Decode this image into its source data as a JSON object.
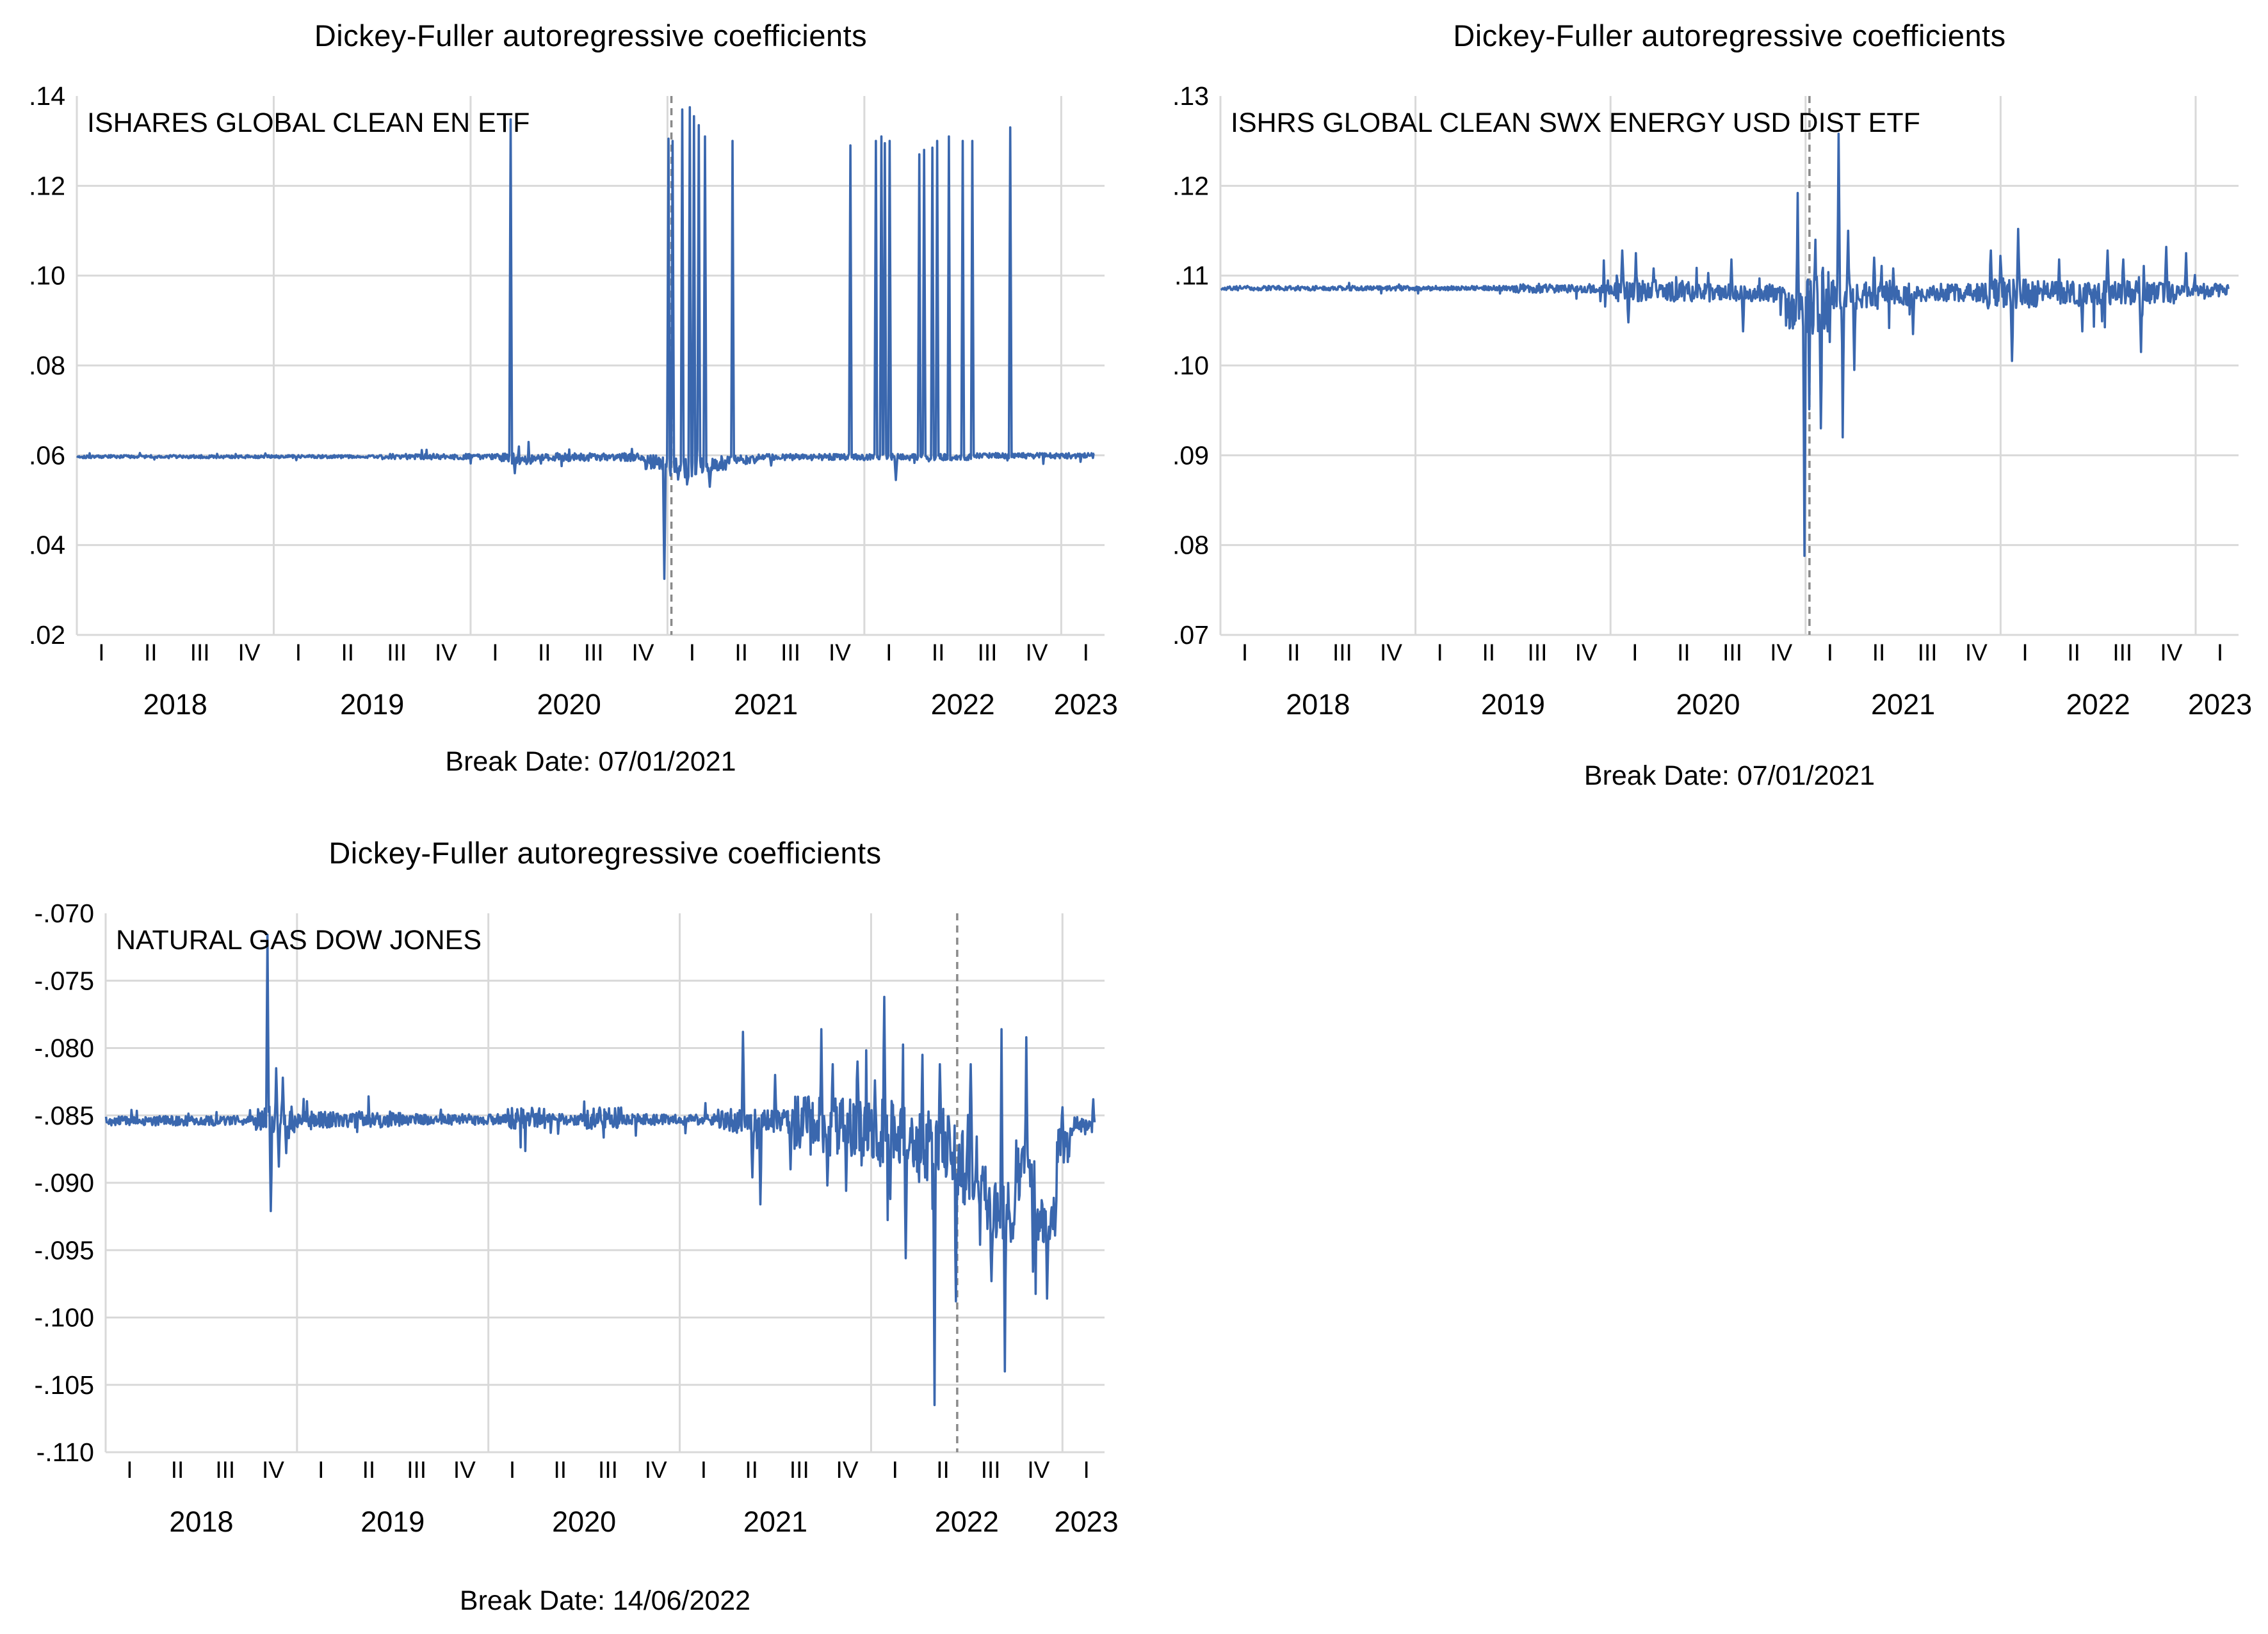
{
  "colors": {
    "series_line": "#3A67AE",
    "gridline": "#D9D9D9",
    "break_line": "#8a8a8a",
    "text": "#000000",
    "background": "#ffffff"
  },
  "charts": [
    {
      "title": "Dickey-Fuller autoregressive coefficients",
      "series_label": "ISHARES GLOBAL CLEAN EN ETF",
      "caption": "Break Date: 07/01/2021",
      "chart_data": {
        "type": "line",
        "x_range": [
          2018.0,
          2023.17
        ],
        "ylim": [
          0.02,
          0.14
        ],
        "y_ticks": [
          {
            "label": ".14",
            "value": 0.14
          },
          {
            "label": ".12",
            "value": 0.12
          },
          {
            "label": ".10",
            "value": 0.1
          },
          {
            "label": ".08",
            "value": 0.08
          },
          {
            "label": ".06",
            "value": 0.06
          },
          {
            "label": ".04",
            "value": 0.04
          },
          {
            "label": ".02",
            "value": 0.02
          }
        ],
        "x_quarter_labels": [
          "I",
          "II",
          "III",
          "IV",
          "I",
          "II",
          "III",
          "IV",
          "I",
          "II",
          "III",
          "IV",
          "I",
          "II",
          "III",
          "IV",
          "I",
          "II",
          "III",
          "IV",
          "I"
        ],
        "x_year_labels": [
          [
            "2018",
            2018.5
          ],
          [
            "2019",
            2019.5
          ],
          [
            "2020",
            2020.5
          ],
          [
            "2021",
            2021.5
          ],
          [
            "2022",
            2022.5
          ],
          [
            "2023",
            2023.125
          ]
        ],
        "year_gridlines": [
          2019,
          2020,
          2021,
          2022,
          2023
        ],
        "break_t": 2021.02,
        "break_date_label": "07/01/2021",
        "baseline": 0.0598,
        "segments": [
          [
            2018.0,
            2019.55,
            0.0597,
            0.00035
          ],
          [
            2019.55,
            2020.15,
            0.0597,
            0.0006
          ],
          [
            2020.15,
            2020.32,
            0.0592,
            0.0013
          ],
          [
            2020.32,
            2020.88,
            0.0596,
            0.0009
          ],
          [
            2020.88,
            2020.99,
            0.0585,
            0.0018
          ],
          [
            2020.99,
            2021.06,
            0.0568,
            0.0028
          ],
          [
            2021.06,
            2021.18,
            0.0572,
            0.0025
          ],
          [
            2021.18,
            2021.3,
            0.0582,
            0.0018
          ],
          [
            2021.3,
            2021.45,
            0.059,
            0.001
          ],
          [
            2021.45,
            2022.55,
            0.0596,
            0.0007
          ],
          [
            2022.55,
            2023.17,
            0.0599,
            0.0006
          ]
        ],
        "spikes": [
          [
            2020.205,
            0.1348
          ],
          [
            2020.225,
            0.056
          ],
          [
            2020.985,
            0.0325
          ],
          [
            2021.005,
            0.1305
          ],
          [
            2021.025,
            0.13
          ],
          [
            2021.075,
            0.137
          ],
          [
            2021.1,
            0.0535
          ],
          [
            2021.115,
            0.1375
          ],
          [
            2021.135,
            0.1355
          ],
          [
            2021.16,
            0.1335
          ],
          [
            2021.19,
            0.131
          ],
          [
            2021.215,
            0.053
          ],
          [
            2021.33,
            0.13
          ],
          [
            2021.93,
            0.129
          ],
          [
            2022.06,
            0.13
          ],
          [
            2022.085,
            0.131
          ],
          [
            2022.105,
            0.1295
          ],
          [
            2022.13,
            0.13
          ],
          [
            2022.16,
            0.0545
          ],
          [
            2022.28,
            0.127
          ],
          [
            2022.305,
            0.128
          ],
          [
            2022.345,
            0.1285
          ],
          [
            2022.37,
            0.13
          ],
          [
            2022.43,
            0.131
          ],
          [
            2022.5,
            0.13
          ],
          [
            2022.55,
            0.13
          ],
          [
            2022.74,
            0.133
          ]
        ]
      }
    },
    {
      "title": "Dickey-Fuller autoregressive coefficients",
      "series_label": "ISHRS GLOBAL CLEAN SWX ENERGY USD DIST ETF",
      "caption": "Break Date: 07/01/2021",
      "chart_data": {
        "type": "line",
        "x_range": [
          2018.0,
          2023.17
        ],
        "ylim": [
          0.07,
          0.13
        ],
        "y_ticks": [
          {
            "label": ".13",
            "value": 0.13
          },
          {
            "label": ".12",
            "value": 0.12
          },
          {
            "label": ".11",
            "value": 0.11
          },
          {
            "label": ".10",
            "value": 0.1
          },
          {
            "label": ".09",
            "value": 0.09
          },
          {
            "label": ".08",
            "value": 0.08
          },
          {
            "label": ".07",
            "value": 0.07
          }
        ],
        "x_quarter_labels": [
          "I",
          "II",
          "III",
          "IV",
          "I",
          "II",
          "III",
          "IV",
          "I",
          "II",
          "III",
          "IV",
          "I",
          "II",
          "III",
          "IV",
          "I",
          "II",
          "III",
          "IV",
          "I"
        ],
        "x_year_labels": [
          [
            "2018",
            2018.5
          ],
          [
            "2019",
            2019.5
          ],
          [
            "2020",
            2020.5
          ],
          [
            "2021",
            2021.5
          ],
          [
            "2022",
            2022.5
          ],
          [
            "2023",
            2023.125
          ]
        ],
        "year_gridlines": [
          2019,
          2020,
          2021,
          2022,
          2023
        ],
        "break_t": 2021.02,
        "break_date_label": "07/01/2021",
        "baseline": 0.1085,
        "segments": [
          [
            2018.0,
            2019.5,
            0.1086,
            0.00025
          ],
          [
            2019.5,
            2019.95,
            0.1086,
            0.0005
          ],
          [
            2019.95,
            2020.4,
            0.1083,
            0.0012
          ],
          [
            2020.4,
            2020.9,
            0.1081,
            0.001
          ],
          [
            2020.9,
            2021.0,
            0.1062,
            0.0022
          ],
          [
            2021.0,
            2021.13,
            0.1068,
            0.0042
          ],
          [
            2021.13,
            2021.55,
            0.1079,
            0.0016
          ],
          [
            2021.55,
            2021.9,
            0.1081,
            0.001
          ],
          [
            2021.9,
            2022.2,
            0.108,
            0.0017
          ],
          [
            2022.2,
            2022.9,
            0.1081,
            0.0013
          ],
          [
            2022.9,
            2023.17,
            0.1084,
            0.0007
          ]
        ],
        "spikes": [
          [
            2020.06,
            0.1128
          ],
          [
            2020.09,
            0.1048
          ],
          [
            2020.13,
            0.1125
          ],
          [
            2020.22,
            0.1108
          ],
          [
            2020.5,
            0.1103
          ],
          [
            2020.62,
            0.1118
          ],
          [
            2020.68,
            0.1038
          ],
          [
            2020.96,
            0.1192
          ],
          [
            2020.995,
            0.0788
          ],
          [
            2021.05,
            0.114
          ],
          [
            2021.08,
            0.093
          ],
          [
            2021.17,
            0.1258
          ],
          [
            2021.19,
            0.092
          ],
          [
            2021.22,
            0.115
          ],
          [
            2021.25,
            0.0995
          ],
          [
            2021.35,
            0.112
          ],
          [
            2021.45,
            0.1108
          ],
          [
            2021.55,
            0.1035
          ],
          [
            2021.95,
            0.1128
          ],
          [
            2022.0,
            0.1122
          ],
          [
            2022.06,
            0.1005
          ],
          [
            2022.09,
            0.1152
          ],
          [
            2022.3,
            0.1118
          ],
          [
            2022.42,
            0.1038
          ],
          [
            2022.55,
            0.1128
          ],
          [
            2022.63,
            0.1118
          ],
          [
            2022.72,
            0.1015
          ],
          [
            2022.85,
            0.1132
          ],
          [
            2022.95,
            0.1125
          ]
        ]
      }
    },
    {
      "title": "Dickey-Fuller autoregressive coefficients",
      "series_label": "NATURAL GAS DOW JONES",
      "caption": "Break Date: 14/06/2022",
      "chart_data": {
        "type": "line",
        "x_range": [
          2018.0,
          2023.17
        ],
        "ylim": [
          -0.11,
          -0.07
        ],
        "y_ticks": [
          {
            "label": "-.070",
            "value": -0.07
          },
          {
            "label": "-.075",
            "value": -0.075
          },
          {
            "label": "-.080",
            "value": -0.08
          },
          {
            "label": "-.085",
            "value": -0.085
          },
          {
            "label": "-.090",
            "value": -0.09
          },
          {
            "label": "-.095",
            "value": -0.095
          },
          {
            "label": "-.100",
            "value": -0.1
          },
          {
            "label": "-.105",
            "value": -0.105
          },
          {
            "label": "-.110",
            "value": -0.11
          }
        ],
        "x_quarter_labels": [
          "I",
          "II",
          "III",
          "IV",
          "I",
          "II",
          "III",
          "IV",
          "I",
          "II",
          "III",
          "IV",
          "I",
          "II",
          "III",
          "IV",
          "I",
          "II",
          "III",
          "IV",
          "I"
        ],
        "x_year_labels": [
          [
            "2018",
            2018.5
          ],
          [
            "2019",
            2019.5
          ],
          [
            "2020",
            2020.5
          ],
          [
            "2021",
            2021.5
          ],
          [
            "2022",
            2022.5
          ],
          [
            "2023",
            2023.125
          ]
        ],
        "year_gridlines": [
          2019,
          2020,
          2021,
          2022,
          2023
        ],
        "break_t": 2022.45,
        "break_date_label": "14/06/2022",
        "baseline": -0.0853,
        "segments": [
          [
            2018.0,
            2018.78,
            -0.0854,
            0.00035
          ],
          [
            2018.78,
            2018.83,
            -0.0853,
            0.0008
          ],
          [
            2018.83,
            2019.0,
            -0.0855,
            0.0012
          ],
          [
            2019.0,
            2019.55,
            -0.0853,
            0.0006
          ],
          [
            2019.55,
            2020.1,
            -0.0853,
            0.0004
          ],
          [
            2020.1,
            2020.3,
            -0.0852,
            0.0008
          ],
          [
            2020.3,
            2020.5,
            -0.0853,
            0.0004
          ],
          [
            2020.5,
            2020.7,
            -0.0852,
            0.0008
          ],
          [
            2020.7,
            2021.2,
            -0.0853,
            0.0004
          ],
          [
            2021.2,
            2021.6,
            -0.0854,
            0.0009
          ],
          [
            2021.6,
            2021.95,
            -0.0858,
            0.0022
          ],
          [
            2021.95,
            2022.2,
            -0.0863,
            0.0025
          ],
          [
            2022.2,
            2022.44,
            -0.0873,
            0.0028
          ],
          [
            2022.44,
            2022.6,
            -0.0888,
            0.0028
          ],
          [
            2022.6,
            2022.76,
            -0.0922,
            0.0022
          ],
          [
            2022.76,
            2022.86,
            -0.0893,
            0.002
          ],
          [
            2022.86,
            2022.97,
            -0.0928,
            0.0018
          ],
          [
            2022.97,
            2023.05,
            -0.0872,
            0.0014
          ],
          [
            2023.05,
            2023.17,
            -0.0857,
            0.0006
          ]
        ],
        "spikes": [
          [
            2018.845,
            -0.0716
          ],
          [
            2018.862,
            -0.0921
          ],
          [
            2018.89,
            -0.0815
          ],
          [
            2018.905,
            -0.0888
          ],
          [
            2018.925,
            -0.0822
          ],
          [
            2018.945,
            -0.0878
          ],
          [
            2021.33,
            -0.0788
          ],
          [
            2021.38,
            -0.0896
          ],
          [
            2021.42,
            -0.0916
          ],
          [
            2021.5,
            -0.082
          ],
          [
            2021.58,
            -0.089
          ],
          [
            2021.74,
            -0.0786
          ],
          [
            2021.77,
            -0.0902
          ],
          [
            2021.8,
            -0.0812
          ],
          [
            2021.87,
            -0.0906
          ],
          [
            2021.93,
            -0.081
          ],
          [
            2022.02,
            -0.0824
          ],
          [
            2022.07,
            -0.0762
          ],
          [
            2022.1,
            -0.0912
          ],
          [
            2022.18,
            -0.0956
          ],
          [
            2022.27,
            -0.0805
          ],
          [
            2022.33,
            -0.1065
          ],
          [
            2022.36,
            -0.0812
          ],
          [
            2022.445,
            -0.0988
          ],
          [
            2022.52,
            -0.0812
          ],
          [
            2022.57,
            -0.0946
          ],
          [
            2022.63,
            -0.0973
          ],
          [
            2022.68,
            -0.0786
          ],
          [
            2022.7,
            -0.104
          ],
          [
            2022.81,
            -0.0792
          ],
          [
            2022.845,
            -0.0966
          ],
          [
            2022.92,
            -0.0986
          ],
          [
            2023.0,
            -0.0844
          ],
          [
            2023.16,
            -0.0838
          ]
        ]
      }
    }
  ]
}
